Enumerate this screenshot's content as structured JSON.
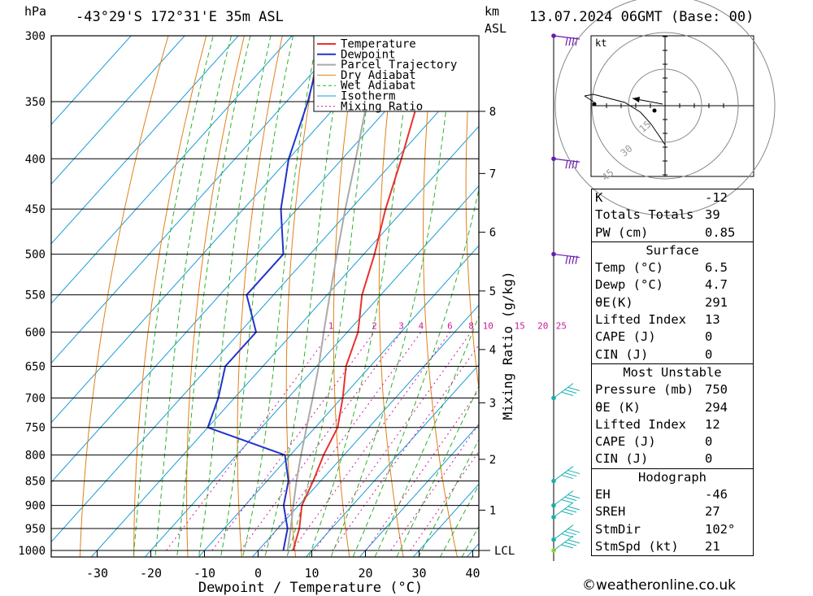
{
  "header": {
    "pressure_unit": "hPa",
    "location": "-43°29'S 172°31'E 35m ASL",
    "km_unit": "km",
    "asl_unit": "ASL",
    "datetime": "13.07.2024 06GMT (Base: 00)"
  },
  "chart_data": {
    "type": "skewt",
    "xlabel": "Dewpoint / Temperature (°C)",
    "ylabel_right": "Mixing Ratio (g/kg)",
    "pressure_levels": [
      300,
      350,
      400,
      450,
      500,
      550,
      600,
      650,
      700,
      750,
      800,
      850,
      900,
      950,
      1000
    ],
    "x_ticks": [
      -30,
      -20,
      -10,
      0,
      10,
      20,
      30,
      40
    ],
    "height_km_ticks": [
      {
        "label": "1",
        "p": 910
      },
      {
        "label": "2",
        "p": 808
      },
      {
        "label": "3",
        "p": 708
      },
      {
        "label": "4",
        "p": 625
      },
      {
        "label": "5",
        "p": 545
      },
      {
        "label": "6",
        "p": 475
      },
      {
        "label": "7",
        "p": 414
      },
      {
        "label": "8",
        "p": 358
      }
    ],
    "lcl": {
      "label": "LCL",
      "p": 1000
    },
    "mixing_ratio_labels": [
      "1",
      "2",
      "3",
      "4",
      "6",
      "8",
      "10",
      "15",
      "20",
      "25"
    ],
    "legend": [
      "Temperature",
      "Dewpoint",
      "Parcel Trajectory",
      "Dry Adiabat",
      "Wet Adiabat",
      "Isotherm",
      "Mixing Ratio"
    ],
    "colors": {
      "temperature": "#e8322e",
      "dewpoint": "#2233cc",
      "parcel": "#aaaaaa",
      "dry_adiabat": "#e0801a",
      "wet_adiabat": "#2db12d",
      "isotherm": "#1a9cd8",
      "mixing_ratio": "#cc1a99",
      "barb": "#6a1ab0",
      "barb_low": "#17b0b0"
    },
    "temperature": [
      {
        "p": 1000,
        "t": 6.5
      },
      {
        "p": 950,
        "t": 4.0
      },
      {
        "p": 900,
        "t": 0.6
      },
      {
        "p": 850,
        "t": -1.4
      },
      {
        "p": 800,
        "t": -3.8
      },
      {
        "p": 750,
        "t": -5.8
      },
      {
        "p": 700,
        "t": -9.8
      },
      {
        "p": 650,
        "t": -14.5
      },
      {
        "p": 600,
        "t": -18.0
      },
      {
        "p": 550,
        "t": -23.5
      },
      {
        "p": 500,
        "t": -28.0
      },
      {
        "p": 450,
        "t": -33.5
      },
      {
        "p": 400,
        "t": -39.0
      },
      {
        "p": 350,
        "t": -45.5
      },
      {
        "p": 300,
        "t": -51.0
      }
    ],
    "dewpoint": [
      {
        "p": 1000,
        "t": 4.7
      },
      {
        "p": 950,
        "t": 1.8
      },
      {
        "p": 900,
        "t": -2.8
      },
      {
        "p": 850,
        "t": -6.0
      },
      {
        "p": 800,
        "t": -11.0
      },
      {
        "p": 750,
        "t": -30.0
      },
      {
        "p": 700,
        "t": -33.0
      },
      {
        "p": 650,
        "t": -37.0
      },
      {
        "p": 600,
        "t": -37.0
      },
      {
        "p": 550,
        "t": -45.0
      },
      {
        "p": 500,
        "t": -45.0
      },
      {
        "p": 450,
        "t": -53.0
      },
      {
        "p": 400,
        "t": -60.0
      },
      {
        "p": 350,
        "t": -66.0
      },
      {
        "p": 300,
        "t": -74.0
      }
    ],
    "parcel": [
      {
        "p": 1000,
        "t": 5.5
      },
      {
        "p": 950,
        "t": 2.4
      },
      {
        "p": 900,
        "t": -1.0
      },
      {
        "p": 850,
        "t": -4.5
      },
      {
        "p": 800,
        "t": -8.0
      },
      {
        "p": 750,
        "t": -11.6
      },
      {
        "p": 700,
        "t": -15.4
      },
      {
        "p": 650,
        "t": -19.6
      },
      {
        "p": 600,
        "t": -24.4
      },
      {
        "p": 550,
        "t": -29.5
      },
      {
        "p": 500,
        "t": -35.0
      },
      {
        "p": 450,
        "t": -41.0
      },
      {
        "p": 400,
        "t": -47.5
      },
      {
        "p": 350,
        "t": -55.0
      },
      {
        "p": 300,
        "t": -63.0
      }
    ],
    "wind_barbs_pressure": [
      1000,
      975,
      925,
      900,
      850,
      700,
      500,
      400,
      300
    ],
    "hodograph": {
      "unit": "kt",
      "ring_labels": [
        "45",
        "30",
        "15"
      ],
      "trace": [
        [
          0.0,
          -12.0
        ],
        [
          -1.2,
          -9.5
        ],
        [
          -3.2,
          -5.5
        ],
        [
          -5.5,
          -2.0
        ],
        [
          -9.0,
          1.0
        ],
        [
          -16.0,
          3.5
        ],
        [
          -18.0,
          3.0
        ]
      ],
      "storm_motion": [
        1.5,
        -1.5
      ]
    }
  },
  "indices": {
    "general": [
      {
        "label": "K",
        "value": "-12"
      },
      {
        "label": "Totals Totals",
        "value": "39"
      },
      {
        "label": "PW (cm)",
        "value": "0.85"
      }
    ],
    "surface": {
      "title": "Surface",
      "rows": [
        {
          "label": "Temp (°C)",
          "value": "6.5"
        },
        {
          "label": "Dewp (°C)",
          "value": "4.7"
        },
        {
          "label": "θE(K)",
          "value": "291"
        },
        {
          "label": "Lifted Index",
          "value": "13"
        },
        {
          "label": "CAPE (J)",
          "value": "0"
        },
        {
          "label": "CIN (J)",
          "value": "0"
        }
      ]
    },
    "most_unstable": {
      "title": "Most Unstable",
      "rows": [
        {
          "label": "Pressure (mb)",
          "value": "750"
        },
        {
          "label": "θE (K)",
          "value": "294"
        },
        {
          "label": "Lifted Index",
          "value": "12"
        },
        {
          "label": "CAPE (J)",
          "value": "0"
        },
        {
          "label": "CIN (J)",
          "value": "0"
        }
      ]
    },
    "hodograph": {
      "title": "Hodograph",
      "rows": [
        {
          "label": "EH",
          "value": "-46"
        },
        {
          "label": "SREH",
          "value": "27"
        },
        {
          "label": "StmDir",
          "value": "102°"
        },
        {
          "label": "StmSpd (kt)",
          "value": "21"
        }
      ]
    }
  },
  "credit": "©weatheronline.co.uk"
}
